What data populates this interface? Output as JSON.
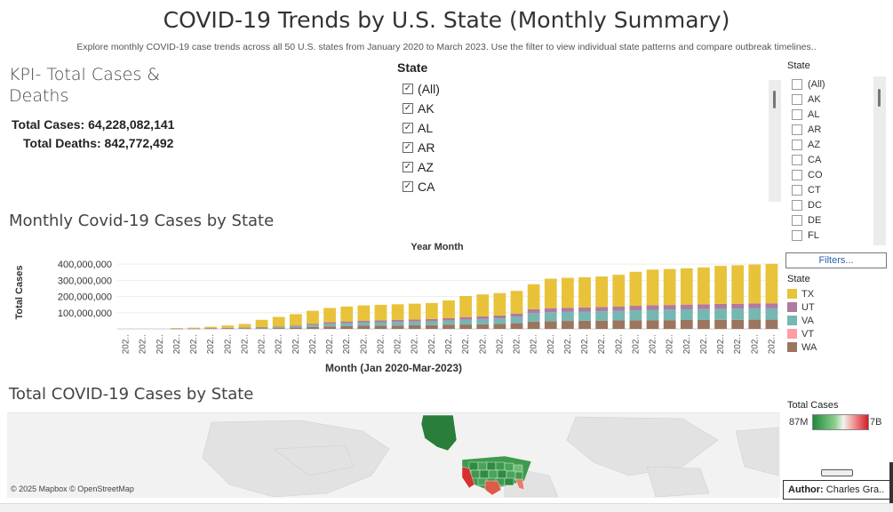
{
  "page": {
    "title": "COVID-19 Trends by U.S. State (Monthly Summary)",
    "subtitle": "Explore monthly COVID-19 case trends across all 50 U.S. states from January 2020 to March 2023. Use the filter to view individual state patterns and compare outbreak timelines.."
  },
  "kpi": {
    "title_line1": "KPI- Total Cases &",
    "title_line2": "Deaths",
    "cases_label": "Total Cases: ",
    "cases_value": "64,228,082,141",
    "deaths_label": "Total Deaths: ",
    "deaths_value": "842,772,492"
  },
  "state_filter": {
    "header": "State",
    "items": [
      {
        "label": "(All)",
        "checked": true
      },
      {
        "label": "AK",
        "checked": true
      },
      {
        "label": "AL",
        "checked": true
      },
      {
        "label": "AR",
        "checked": true
      },
      {
        "label": "AZ",
        "checked": true
      },
      {
        "label": "CA",
        "checked": true
      }
    ]
  },
  "side_filter": {
    "header": "State",
    "items": [
      "(All)",
      "AK",
      "AL",
      "AR",
      "AZ",
      "CA",
      "CO",
      "CT",
      "DC",
      "DE",
      "FL"
    ],
    "filters_button": "Filters..."
  },
  "legend": {
    "header": "State",
    "items": [
      {
        "label": "TX",
        "color": "#e8c33a"
      },
      {
        "label": "UT",
        "color": "#b07aa1"
      },
      {
        "label": "VA",
        "color": "#76b7b2"
      },
      {
        "label": "VT",
        "color": "#ff9da7"
      },
      {
        "label": "WA",
        "color": "#9c755f"
      }
    ]
  },
  "chart_section": {
    "title": "Monthly Covid-19 Cases by State"
  },
  "chart_data": {
    "type": "bar",
    "stacked": true,
    "top_label": "Year Month",
    "xlabel": "Month (Jan 2020-Mar-2023)",
    "ylabel": "Total Cases",
    "ylim": [
      0,
      450000000
    ],
    "yticks": [
      "100,000,000",
      "200,000,000",
      "300,000,000",
      "400,000,000"
    ],
    "ytick_values": [
      100000000,
      200000000,
      300000000,
      400000000
    ],
    "x_tick_label": "202..",
    "categories": [
      "2020-01",
      "2020-02",
      "2020-03",
      "2020-04",
      "2020-05",
      "2020-06",
      "2020-07",
      "2020-08",
      "2020-09",
      "2020-10",
      "2020-11",
      "2020-12",
      "2021-01",
      "2021-02",
      "2021-03",
      "2021-04",
      "2021-05",
      "2021-06",
      "2021-07",
      "2021-08",
      "2021-09",
      "2021-10",
      "2021-11",
      "2021-12",
      "2022-01",
      "2022-02",
      "2022-03",
      "2022-04",
      "2022-05",
      "2022-06",
      "2022-07",
      "2022-08",
      "2022-09",
      "2022-10",
      "2022-11",
      "2022-12",
      "2023-01",
      "2023-02",
      "2023-03"
    ],
    "series": [
      {
        "name": "WA",
        "color": "#9c755f",
        "values": [
          0,
          0,
          0,
          1000000,
          1500000,
          2000000,
          2500000,
          3000000,
          4000000,
          5000000,
          8000000,
          12000000,
          15000000,
          17000000,
          19000000,
          20000000,
          21000000,
          22000000,
          23000000,
          25000000,
          27000000,
          28000000,
          30000000,
          35000000,
          45000000,
          48000000,
          49000000,
          50000000,
          51000000,
          52000000,
          53000000,
          54000000,
          54000000,
          55000000,
          55000000,
          56000000,
          56000000,
          57000000,
          57000000
        ]
      },
      {
        "name": "VT",
        "color": "#ff9da7",
        "values": [
          0,
          0,
          0,
          0,
          0,
          0,
          0,
          0,
          0,
          0,
          0,
          0,
          0,
          0,
          0,
          0,
          0,
          0,
          0,
          0,
          0,
          0,
          0,
          0,
          0,
          0,
          0,
          0,
          0,
          0,
          0,
          0,
          0,
          0,
          0,
          0,
          0,
          0,
          0
        ]
      },
      {
        "name": "VA",
        "color": "#76b7b2",
        "values": [
          0,
          0,
          0,
          1000000,
          1500000,
          2000000,
          3000000,
          3500000,
          4500000,
          6000000,
          8000000,
          12000000,
          16000000,
          18000000,
          20000000,
          21000000,
          22000000,
          23000000,
          24000000,
          26000000,
          30000000,
          33000000,
          35000000,
          40000000,
          52000000,
          55000000,
          56000000,
          57000000,
          58000000,
          60000000,
          62000000,
          64000000,
          65000000,
          66000000,
          67000000,
          68000000,
          69000000,
          70000000,
          70000000
        ]
      },
      {
        "name": "UT",
        "color": "#b07aa1",
        "values": [
          0,
          0,
          0,
          500000,
          500000,
          1000000,
          1500000,
          2000000,
          2500000,
          3000000,
          5000000,
          8000000,
          10000000,
          11000000,
          12000000,
          12500000,
          13000000,
          13500000,
          14000000,
          15000000,
          16000000,
          17000000,
          18000000,
          20000000,
          24000000,
          25000000,
          25500000,
          26000000,
          26500000,
          27000000,
          27500000,
          28000000,
          28500000,
          29000000,
          29500000,
          30000000,
          30000000,
          30500000,
          31000000
        ]
      },
      {
        "name": "TX",
        "color": "#e8c33a",
        "values": [
          0,
          0,
          0,
          2000000,
          4000000,
          8000000,
          14000000,
          22000000,
          45000000,
          60000000,
          70000000,
          80000000,
          88000000,
          92000000,
          94000000,
          95000000,
          96000000,
          97000000,
          99000000,
          110000000,
          130000000,
          135000000,
          138000000,
          140000000,
          155000000,
          182000000,
          185000000,
          186000000,
          188000000,
          195000000,
          210000000,
          220000000,
          222000000,
          224000000,
          228000000,
          235000000,
          238000000,
          240000000,
          244000000
        ]
      }
    ]
  },
  "map_section": {
    "title": "Total COVID-19 Cases by State",
    "credit": "© 2025 Mapbox © OpenStreetMap",
    "legend_title": "Total Cases",
    "legend_min": "87M",
    "legend_max": "7B",
    "colors": {
      "low": "#1e8a3a",
      "high": "#d2202a"
    }
  },
  "author": {
    "label": "Author: ",
    "name": "Charles Gra.."
  }
}
